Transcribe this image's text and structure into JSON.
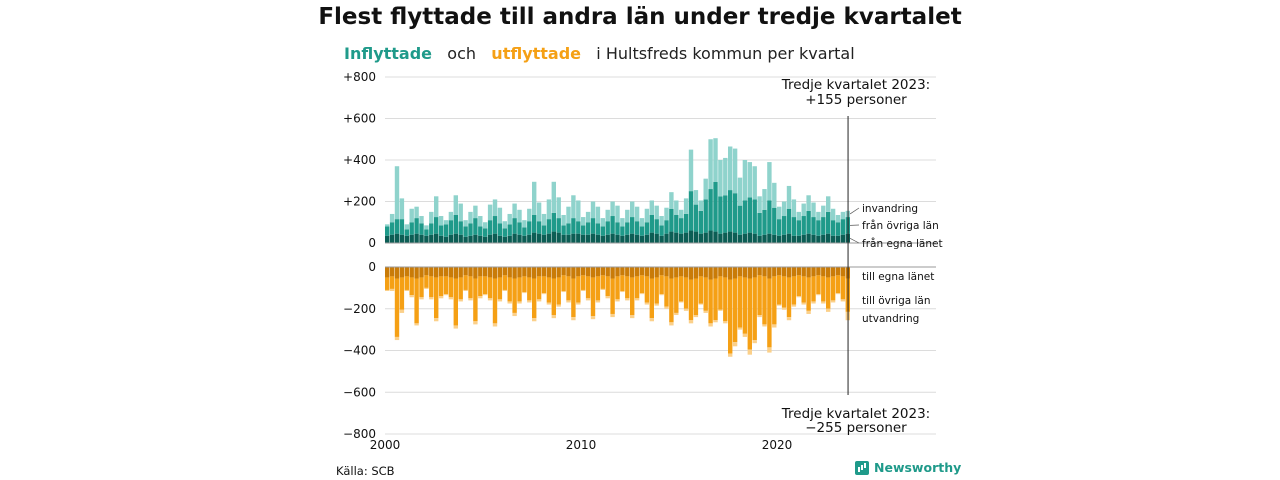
{
  "title": "Flest flyttade till andra län under tredje kvartalet",
  "subtitle": {
    "inflow_word": "Inflyttade",
    "and_word": "och",
    "outflow_word": "utflyttade",
    "rest": "i Hultsfreds  kommun  per  kvartal"
  },
  "source": "Källa: SCB",
  "brand": {
    "name": "Newsworthy",
    "icon": "bar-chart-icon"
  },
  "colors": {
    "immigration": "#8fd3cc",
    "other_counties_in": "#1f9a8a",
    "own_county_in": "#0c5e55",
    "own_county_out": "#c97b08",
    "other_counties_out": "#f5a015",
    "emigration": "#fbd08a"
  },
  "chart_data": {
    "type": "bar",
    "stacked": true,
    "diverging": true,
    "x_start_year": 2000,
    "quarters": [
      "2000 Q1",
      "2000 Q2",
      "2000 Q3",
      "2000 Q4",
      "2001 Q1",
      "2001 Q2",
      "2001 Q3",
      "2001 Q4",
      "2002 Q1",
      "2002 Q2",
      "2002 Q3",
      "2002 Q4",
      "2003 Q1",
      "2003 Q2",
      "2003 Q3",
      "2003 Q4",
      "2004 Q1",
      "2004 Q2",
      "2004 Q3",
      "2004 Q4",
      "2005 Q1",
      "2005 Q2",
      "2005 Q3",
      "2005 Q4",
      "2006 Q1",
      "2006 Q2",
      "2006 Q3",
      "2006 Q4",
      "2007 Q1",
      "2007 Q2",
      "2007 Q3",
      "2007 Q4",
      "2008 Q1",
      "2008 Q2",
      "2008 Q3",
      "2008 Q4",
      "2009 Q1",
      "2009 Q2",
      "2009 Q3",
      "2009 Q4",
      "2010 Q1",
      "2010 Q2",
      "2010 Q3",
      "2010 Q4",
      "2011 Q1",
      "2011 Q2",
      "2011 Q3",
      "2011 Q4",
      "2012 Q1",
      "2012 Q2",
      "2012 Q3",
      "2012 Q4",
      "2013 Q1",
      "2013 Q2",
      "2013 Q3",
      "2013 Q4",
      "2014 Q1",
      "2014 Q2",
      "2014 Q3",
      "2014 Q4",
      "2015 Q1",
      "2015 Q2",
      "2015 Q3",
      "2015 Q4",
      "2016 Q1",
      "2016 Q2",
      "2016 Q3",
      "2016 Q4",
      "2017 Q1",
      "2017 Q2",
      "2017 Q3",
      "2017 Q4",
      "2018 Q1",
      "2018 Q2",
      "2018 Q3",
      "2018 Q4",
      "2019 Q1",
      "2019 Q2",
      "2019 Q3",
      "2019 Q4",
      "2020 Q1",
      "2020 Q2",
      "2020 Q3",
      "2020 Q4",
      "2021 Q1",
      "2021 Q2",
      "2021 Q3",
      "2021 Q4",
      "2022 Q1",
      "2022 Q2",
      "2022 Q3",
      "2022 Q4",
      "2023 Q1",
      "2023 Q2",
      "2023 Q3"
    ],
    "inflow_series": [
      {
        "name": "från egna länet",
        "values": [
          35,
          40,
          45,
          40,
          35,
          40,
          45,
          40,
          35,
          40,
          45,
          35,
          30,
          40,
          45,
          40,
          30,
          35,
          40,
          35,
          30,
          40,
          45,
          35,
          30,
          35,
          45,
          40,
          35,
          40,
          50,
          45,
          40,
          45,
          55,
          50,
          40,
          40,
          45,
          45,
          40,
          40,
          45,
          40,
          35,
          40,
          45,
          40,
          35,
          40,
          45,
          40,
          35,
          40,
          50,
          45,
          35,
          45,
          55,
          50,
          45,
          50,
          60,
          55,
          45,
          50,
          60,
          55,
          45,
          50,
          55,
          50,
          40,
          45,
          50,
          45,
          35,
          40,
          45,
          40,
          35,
          40,
          45,
          35,
          35,
          40,
          45,
          40,
          35,
          40,
          45,
          35,
          35,
          40,
          45
        ]
      },
      {
        "name": "från övriga län",
        "values": [
          45,
          60,
          70,
          75,
          30,
          60,
          75,
          55,
          30,
          55,
          80,
          50,
          60,
          70,
          90,
          65,
          50,
          60,
          80,
          45,
          40,
          70,
          85,
          60,
          40,
          55,
          75,
          60,
          40,
          65,
          85,
          60,
          45,
          70,
          90,
          70,
          45,
          55,
          75,
          60,
          45,
          60,
          75,
          55,
          45,
          65,
          85,
          60,
          45,
          60,
          80,
          65,
          45,
          60,
          85,
          70,
          50,
          65,
          110,
          85,
          75,
          90,
          190,
          130,
          110,
          160,
          200,
          240,
          180,
          180,
          200,
          190,
          140,
          160,
          170,
          165,
          110,
          120,
          160,
          130,
          80,
          90,
          120,
          90,
          75,
          90,
          110,
          85,
          75,
          85,
          105,
          75,
          65,
          75,
          80
        ]
      },
      {
        "name": "invandring",
        "values": [
          10,
          40,
          255,
          100,
          25,
          65,
          55,
          35,
          20,
          55,
          100,
          45,
          20,
          40,
          95,
          85,
          30,
          55,
          60,
          50,
          30,
          75,
          80,
          75,
          35,
          50,
          70,
          60,
          35,
          60,
          160,
          90,
          55,
          95,
          150,
          100,
          50,
          80,
          110,
          100,
          40,
          50,
          80,
          80,
          40,
          55,
          70,
          80,
          40,
          60,
          75,
          70,
          40,
          65,
          70,
          65,
          45,
          60,
          80,
          70,
          40,
          75,
          200,
          70,
          50,
          100,
          240,
          210,
          175,
          180,
          210,
          215,
          135,
          195,
          170,
          160,
          80,
          100,
          185,
          120,
          60,
          70,
          110,
          85,
          40,
          60,
          75,
          70,
          40,
          55,
          75,
          55,
          35,
          35,
          30
        ]
      }
    ],
    "outflow_series": [
      {
        "name": "till egna länet",
        "values": [
          -50,
          -45,
          -55,
          -50,
          -45,
          -50,
          -55,
          -50,
          -40,
          -45,
          -50,
          -45,
          -45,
          -50,
          -55,
          -50,
          -40,
          -45,
          -55,
          -45,
          -45,
          -50,
          -55,
          -50,
          -40,
          -50,
          -55,
          -50,
          -45,
          -50,
          -55,
          -45,
          -45,
          -50,
          -55,
          -50,
          -40,
          -45,
          -55,
          -45,
          -40,
          -45,
          -50,
          -45,
          -40,
          -45,
          -55,
          -45,
          -40,
          -45,
          -50,
          -45,
          -40,
          -45,
          -55,
          -50,
          -40,
          -45,
          -55,
          -50,
          -45,
          -50,
          -60,
          -55,
          -45,
          -50,
          -60,
          -55,
          -45,
          -50,
          -60,
          -55,
          -45,
          -50,
          -55,
          -50,
          -40,
          -45,
          -55,
          -45,
          -40,
          -45,
          -50,
          -45,
          -40,
          -45,
          -50,
          -45,
          -40,
          -45,
          -50,
          -45,
          -40,
          -45,
          -55
        ]
      },
      {
        "name": "till övriga län",
        "values": [
          -60,
          -60,
          -280,
          -155,
          -65,
          -85,
          -215,
          -95,
          -60,
          -100,
          -195,
          -95,
          -85,
          -95,
          -225,
          -105,
          -70,
          -105,
          -205,
          -95,
          -85,
          -100,
          -215,
          -105,
          -70,
          -115,
          -165,
          -115,
          -75,
          -110,
          -190,
          -110,
          -80,
          -120,
          -175,
          -130,
          -75,
          -115,
          -185,
          -125,
          -70,
          -105,
          -185,
          -115,
          -65,
          -95,
          -170,
          -110,
          -75,
          -105,
          -180,
          -105,
          -85,
          -125,
          -190,
          -125,
          -90,
          -145,
          -210,
          -170,
          -120,
          -150,
          -195,
          -175,
          -130,
          -160,
          -210,
          -200,
          -160,
          -210,
          -355,
          -305,
          -245,
          -270,
          -340,
          -300,
          -190,
          -230,
          -330,
          -230,
          -140,
          -150,
          -190,
          -135,
          -100,
          -125,
          -160,
          -120,
          -90,
          -120,
          -150,
          -115,
          -85,
          -110,
          -160
        ]
      },
      {
        "name": "utvandring",
        "values": [
          -5,
          -10,
          -15,
          -15,
          -5,
          -10,
          -10,
          -10,
          -5,
          -10,
          -15,
          -10,
          -5,
          -10,
          -15,
          -10,
          -5,
          -10,
          -15,
          -10,
          -5,
          -10,
          -15,
          -10,
          -5,
          -10,
          -15,
          -10,
          -5,
          -10,
          -15,
          -10,
          -5,
          -10,
          -15,
          -10,
          -5,
          -10,
          -15,
          -10,
          -5,
          -10,
          -15,
          -10,
          -5,
          -10,
          -15,
          -10,
          -5,
          -10,
          -15,
          -10,
          -5,
          -10,
          -15,
          -10,
          -5,
          -10,
          -15,
          -10,
          -5,
          -10,
          -15,
          -10,
          -5,
          -10,
          -15,
          -10,
          -5,
          -10,
          -15,
          -20,
          -10,
          -15,
          -25,
          -15,
          -10,
          -10,
          -25,
          -15,
          -5,
          -10,
          -15,
          -10,
          -5,
          -10,
          -15,
          -10,
          -5,
          -10,
          -15,
          -10,
          -5,
          -10,
          -40
        ]
      }
    ],
    "top_axis": {
      "ylim": [
        0,
        800
      ],
      "ticks": [
        0,
        200,
        400,
        600,
        800
      ],
      "tick_labels": [
        "0",
        "+200",
        "+400",
        "+600",
        "+800"
      ]
    },
    "bottom_axis": {
      "ylim": [
        -800,
        0
      ],
      "ticks": [
        0,
        -200,
        -400,
        -600,
        -800
      ],
      "tick_labels": [
        "0",
        "−200",
        "−400",
        "−600",
        "−800"
      ]
    },
    "x_ticks": [
      {
        "quarter_index": 0,
        "label": "2000"
      },
      {
        "quarter_index": 40,
        "label": "2010"
      },
      {
        "quarter_index": 80,
        "label": "2020"
      }
    ],
    "annotation_top": {
      "line1": "Tredje kvartalet 2023:",
      "line2": "+155 personer"
    },
    "annotation_bottom": {
      "line1": "Tredje kvartalet 2023:",
      "line2": "−255 personer"
    },
    "grid": true
  }
}
